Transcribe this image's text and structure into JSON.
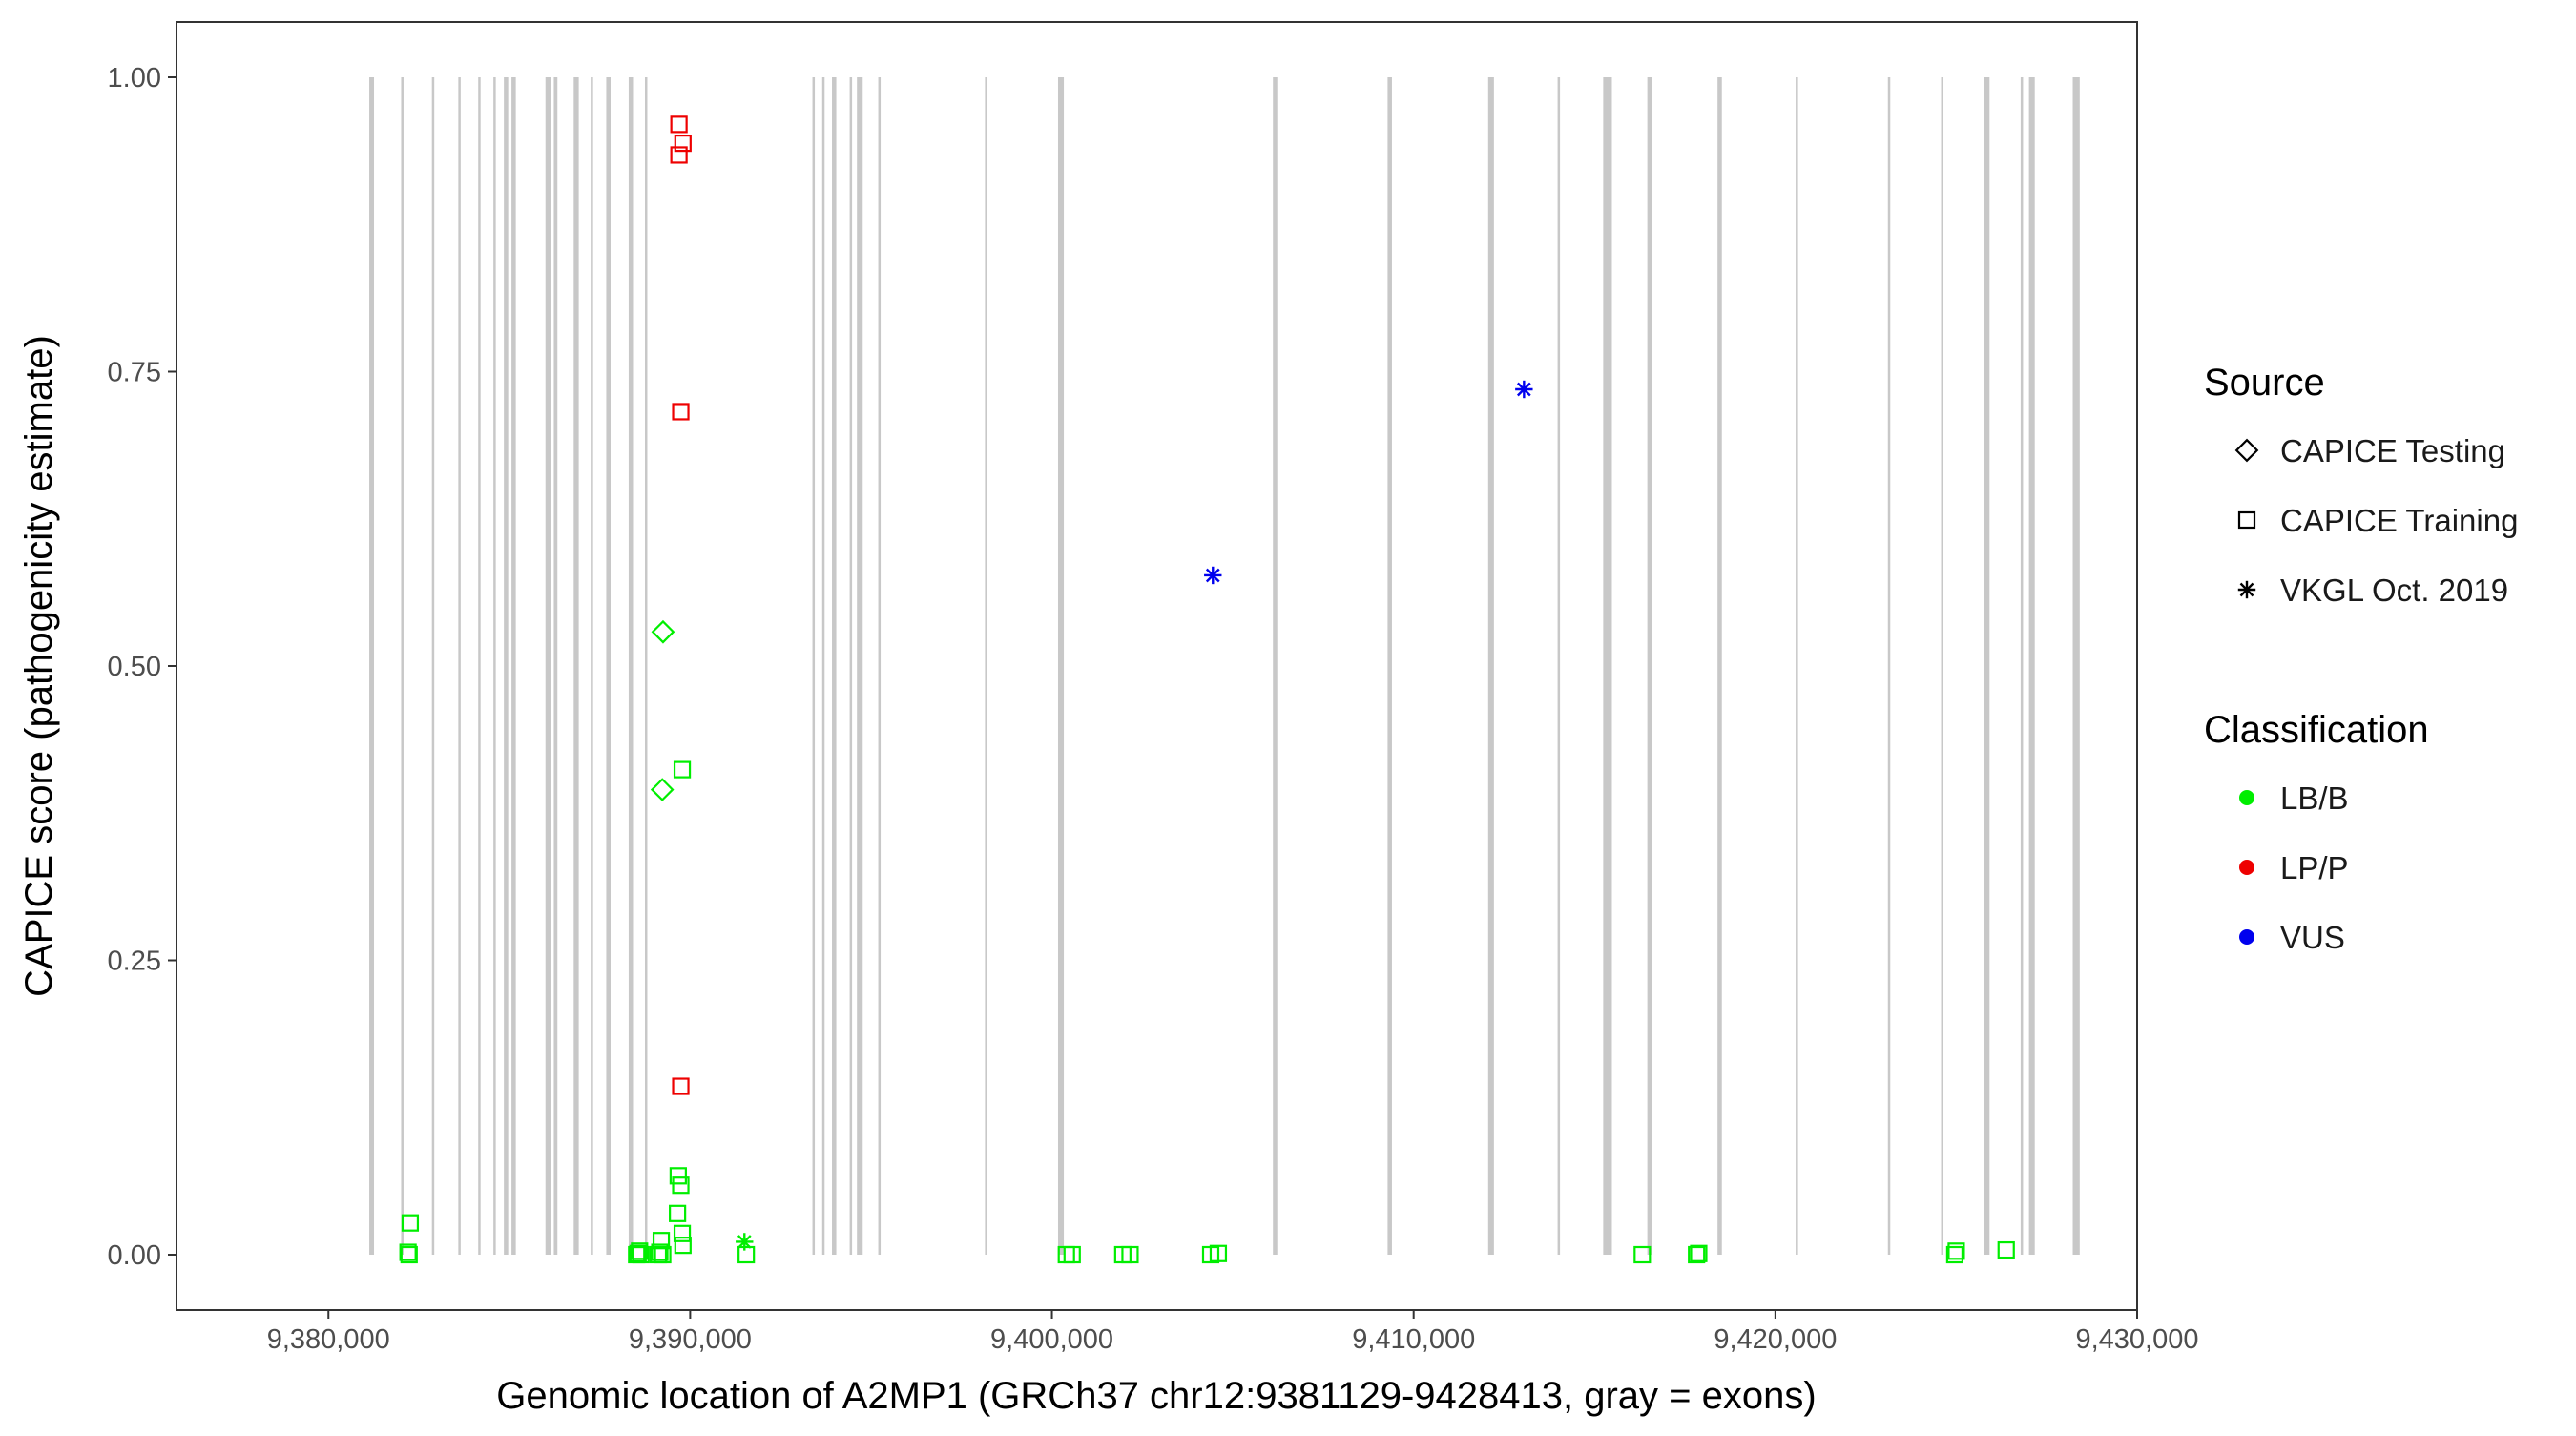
{
  "chart_data": {
    "type": "scatter",
    "xlabel": "Genomic location of A2MP1 (GRCh37 chr12:9381129-9428413, gray = exons)",
    "ylabel": "CAPICE score (pathogenicity estimate)",
    "xlim": [
      9375800,
      9430000
    ],
    "ylim": [
      -0.047,
      1.047
    ],
    "x_ticks": [
      9380000,
      9390000,
      9400000,
      9410000,
      9420000,
      9430000
    ],
    "x_tick_labels": [
      "9,380,000",
      "9,390,000",
      "9,400,000",
      "9,410,000",
      "9,420,000",
      "9,430,000"
    ],
    "y_ticks": [
      0,
      0.25,
      0.5,
      0.75,
      1.0
    ],
    "y_tick_labels": [
      "0.00",
      "0.25",
      "0.50",
      "0.75",
      "1.00"
    ],
    "grid": false,
    "legend_position": "right",
    "exon_color": "#c8c8c8",
    "exons": [
      {
        "start": 9381129,
        "end": 9381260
      },
      {
        "start": 9382010,
        "end": 9382050
      },
      {
        "start": 9382860,
        "end": 9382900
      },
      {
        "start": 9383590,
        "end": 9383630
      },
      {
        "start": 9384140,
        "end": 9384180
      },
      {
        "start": 9384560,
        "end": 9384600
      },
      {
        "start": 9384850,
        "end": 9384970
      },
      {
        "start": 9385060,
        "end": 9385180
      },
      {
        "start": 9386000,
        "end": 9386160
      },
      {
        "start": 9386230,
        "end": 9386330
      },
      {
        "start": 9386780,
        "end": 9386920
      },
      {
        "start": 9387250,
        "end": 9387290
      },
      {
        "start": 9387680,
        "end": 9387800
      },
      {
        "start": 9388300,
        "end": 9388420
      },
      {
        "start": 9388750,
        "end": 9388790
      },
      {
        "start": 9393380,
        "end": 9393420
      },
      {
        "start": 9393650,
        "end": 9393690
      },
      {
        "start": 9393920,
        "end": 9394040
      },
      {
        "start": 9394410,
        "end": 9394450
      },
      {
        "start": 9394610,
        "end": 9394770
      },
      {
        "start": 9395200,
        "end": 9395240
      },
      {
        "start": 9398150,
        "end": 9398190
      },
      {
        "start": 9400170,
        "end": 9400330
      },
      {
        "start": 9406110,
        "end": 9406230
      },
      {
        "start": 9409280,
        "end": 9409400
      },
      {
        "start": 9412060,
        "end": 9412220
      },
      {
        "start": 9413980,
        "end": 9414020
      },
      {
        "start": 9415240,
        "end": 9415480
      },
      {
        "start": 9416460,
        "end": 9416580
      },
      {
        "start": 9418400,
        "end": 9418520
      },
      {
        "start": 9420560,
        "end": 9420600
      },
      {
        "start": 9423110,
        "end": 9423150
      },
      {
        "start": 9424580,
        "end": 9424620
      },
      {
        "start": 9425760,
        "end": 9425920
      },
      {
        "start": 9426780,
        "end": 9426820
      },
      {
        "start": 9427010,
        "end": 9427170
      },
      {
        "start": 9428220,
        "end": 9428413
      }
    ],
    "points": [
      {
        "x": 9382200,
        "y": 0.002,
        "source": "CAPICE Training",
        "classification": "LB/B"
      },
      {
        "x": 9382230,
        "y": 0.0,
        "source": "CAPICE Training",
        "classification": "LB/B"
      },
      {
        "x": 9382260,
        "y": 0.027,
        "source": "CAPICE Training",
        "classification": "LB/B"
      },
      {
        "x": 9388520,
        "y": 0.0,
        "source": "CAPICE Training",
        "classification": "LB/B"
      },
      {
        "x": 9388560,
        "y": 0.001,
        "source": "CAPICE Training",
        "classification": "LB/B"
      },
      {
        "x": 9388600,
        "y": 0.003,
        "source": "CAPICE Training",
        "classification": "LB/B"
      },
      {
        "x": 9388640,
        "y": 0.0,
        "source": "CAPICE Training",
        "classification": "LB/B"
      },
      {
        "x": 9389120,
        "y": 0.0,
        "source": "CAPICE Training",
        "classification": "LB/B"
      },
      {
        "x": 9389160,
        "y": 0.002,
        "source": "CAPICE Training",
        "classification": "LB/B"
      },
      {
        "x": 9389200,
        "y": 0.012,
        "source": "CAPICE Training",
        "classification": "LB/B"
      },
      {
        "x": 9389240,
        "y": 0.0,
        "source": "CAPICE Training",
        "classification": "LB/B"
      },
      {
        "x": 9389650,
        "y": 0.035,
        "source": "CAPICE Training",
        "classification": "LB/B"
      },
      {
        "x": 9389670,
        "y": 0.067,
        "source": "CAPICE Training",
        "classification": "LB/B"
      },
      {
        "x": 9389740,
        "y": 0.059,
        "source": "CAPICE Training",
        "classification": "LB/B"
      },
      {
        "x": 9389780,
        "y": 0.018,
        "source": "CAPICE Training",
        "classification": "LB/B"
      },
      {
        "x": 9389800,
        "y": 0.008,
        "source": "CAPICE Training",
        "classification": "LB/B"
      },
      {
        "x": 9389780,
        "y": 0.412,
        "source": "CAPICE Training",
        "classification": "LB/B"
      },
      {
        "x": 9391550,
        "y": 0.0,
        "source": "CAPICE Training",
        "classification": "LB/B"
      },
      {
        "x": 9400400,
        "y": 0.0,
        "source": "CAPICE Training",
        "classification": "LB/B"
      },
      {
        "x": 9400560,
        "y": 0.0,
        "source": "CAPICE Training",
        "classification": "LB/B"
      },
      {
        "x": 9401960,
        "y": 0.0,
        "source": "CAPICE Training",
        "classification": "LB/B"
      },
      {
        "x": 9402160,
        "y": 0.0,
        "source": "CAPICE Training",
        "classification": "LB/B"
      },
      {
        "x": 9404390,
        "y": 0.0,
        "source": "CAPICE Training",
        "classification": "LB/B"
      },
      {
        "x": 9404600,
        "y": 0.001,
        "source": "CAPICE Training",
        "classification": "LB/B"
      },
      {
        "x": 9416320,
        "y": 0.0,
        "source": "CAPICE Training",
        "classification": "LB/B"
      },
      {
        "x": 9417820,
        "y": 0.0,
        "source": "CAPICE Training",
        "classification": "LB/B"
      },
      {
        "x": 9417880,
        "y": 0.001,
        "source": "CAPICE Training",
        "classification": "LB/B"
      },
      {
        "x": 9424960,
        "y": 0.0,
        "source": "CAPICE Training",
        "classification": "LB/B"
      },
      {
        "x": 9425000,
        "y": 0.003,
        "source": "CAPICE Training",
        "classification": "LB/B"
      },
      {
        "x": 9426380,
        "y": 0.004,
        "source": "CAPICE Training",
        "classification": "LB/B"
      },
      {
        "x": 9389690,
        "y": 0.96,
        "source": "CAPICE Training",
        "classification": "LP/P"
      },
      {
        "x": 9389800,
        "y": 0.944,
        "source": "CAPICE Training",
        "classification": "LP/P"
      },
      {
        "x": 9389690,
        "y": 0.934,
        "source": "CAPICE Training",
        "classification": "LP/P"
      },
      {
        "x": 9389740,
        "y": 0.716,
        "source": "CAPICE Training",
        "classification": "LP/P"
      },
      {
        "x": 9389740,
        "y": 0.143,
        "source": "CAPICE Training",
        "classification": "LP/P"
      },
      {
        "x": 9389250,
        "y": 0.529,
        "source": "CAPICE Testing",
        "classification": "LB/B"
      },
      {
        "x": 9389230,
        "y": 0.395,
        "source": "CAPICE Testing",
        "classification": "LB/B"
      },
      {
        "x": 9391500,
        "y": 0.011,
        "source": "VKGL Oct. 2019",
        "classification": "LB/B"
      },
      {
        "x": 9404450,
        "y": 0.577,
        "source": "VKGL Oct. 2019",
        "classification": "VUS"
      },
      {
        "x": 9413050,
        "y": 0.735,
        "source": "VKGL Oct. 2019",
        "classification": "VUS"
      }
    ],
    "legend": {
      "source_title": "Source",
      "source_entries": [
        {
          "label": "CAPICE Testing",
          "shape": "diamond"
        },
        {
          "label": "CAPICE Training",
          "shape": "square"
        },
        {
          "label": "VKGL Oct. 2019",
          "shape": "asterisk"
        }
      ],
      "classification_title": "Classification",
      "classification_entries": [
        {
          "label": "LB/B",
          "color": "#00ee00"
        },
        {
          "label": "LP/P",
          "color": "#ee0000"
        },
        {
          "label": "VUS",
          "color": "#0000ee"
        }
      ]
    }
  }
}
